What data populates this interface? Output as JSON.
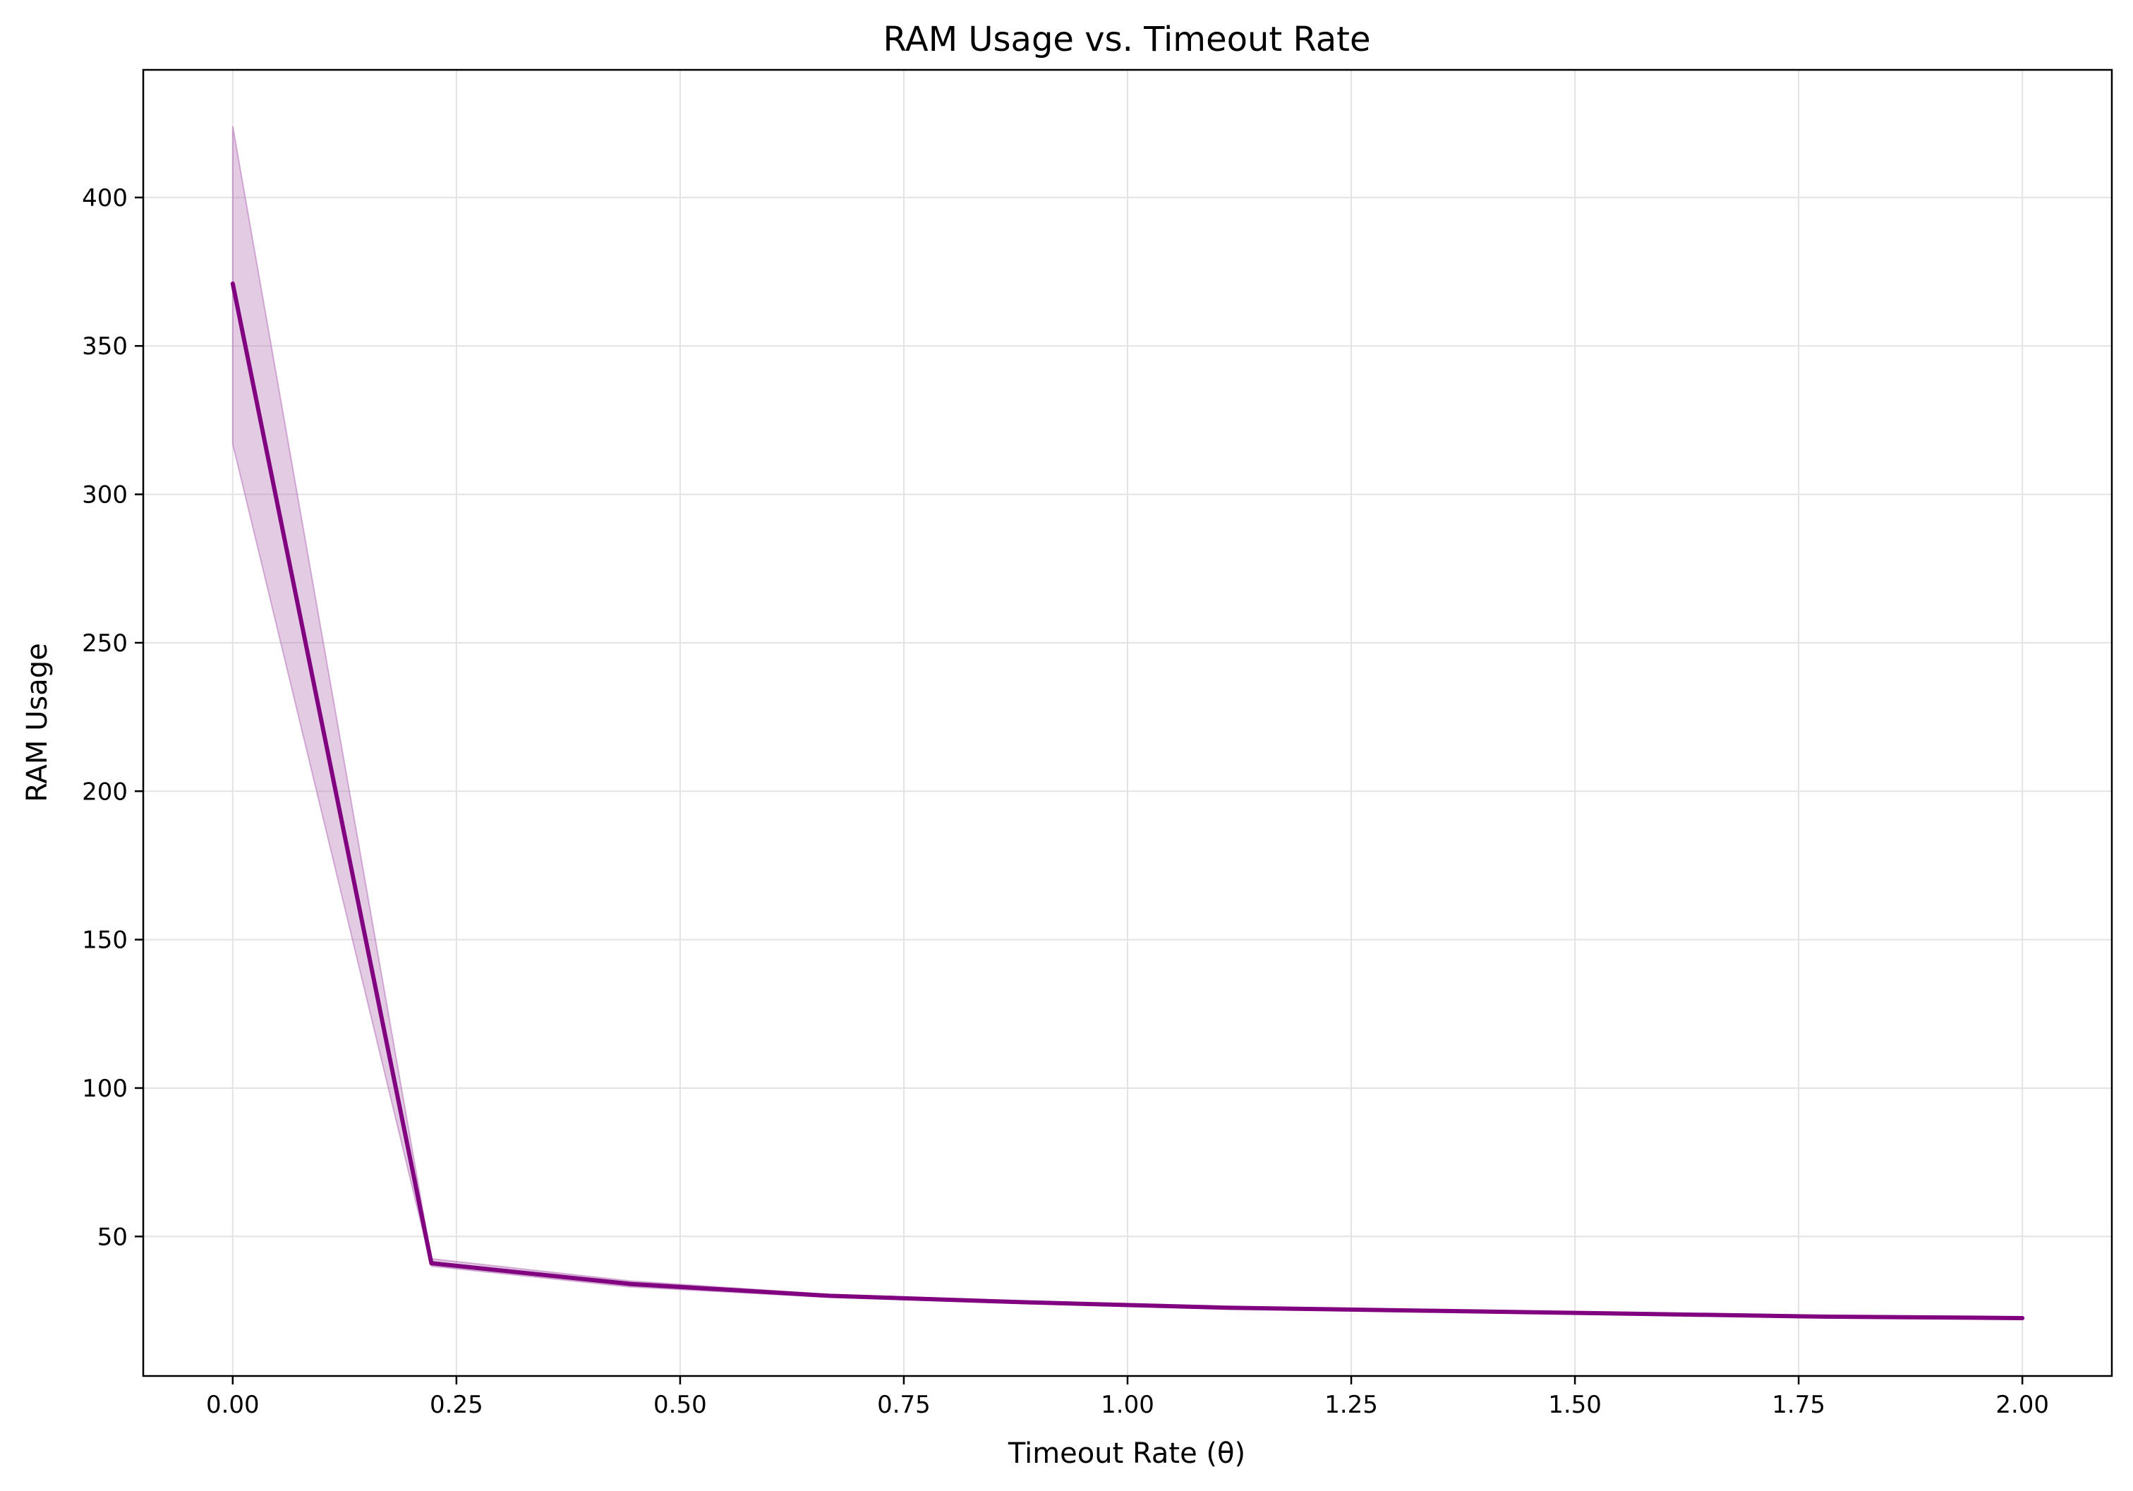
{
  "chart_data": {
    "type": "line",
    "title": "RAM Usage vs. Timeout Rate",
    "xlabel": "Timeout Rate (θ)",
    "ylabel": "RAM Usage",
    "xlim": [
      -0.1,
      2.1
    ],
    "ylim": [
      3,
      443
    ],
    "xticks": [
      "0.00",
      "0.25",
      "0.50",
      "0.75",
      "1.00",
      "1.25",
      "1.50",
      "1.75",
      "2.00"
    ],
    "yticks": [
      "50",
      "100",
      "150",
      "200",
      "250",
      "300",
      "350",
      "400"
    ],
    "grid": true,
    "series": [
      {
        "x": [
          0.0,
          0.222,
          0.444,
          0.667,
          0.889,
          1.111,
          1.333,
          1.556,
          1.778,
          2.0
        ],
        "values": [
          371,
          41,
          34,
          30,
          27.8,
          26,
          25,
          24,
          23,
          22.5
        ],
        "lower": [
          317,
          40,
          33,
          29.5,
          27.4,
          25.7,
          24.7,
          23.8,
          22.8,
          22.3
        ],
        "upper": [
          424,
          42.5,
          35,
          30.5,
          28.2,
          26.3,
          25.3,
          24.2,
          23.2,
          22.7
        ]
      }
    ],
    "colors": {
      "line": "#800080",
      "band": "#b06ab3",
      "grid": "#e3e3e3"
    }
  }
}
